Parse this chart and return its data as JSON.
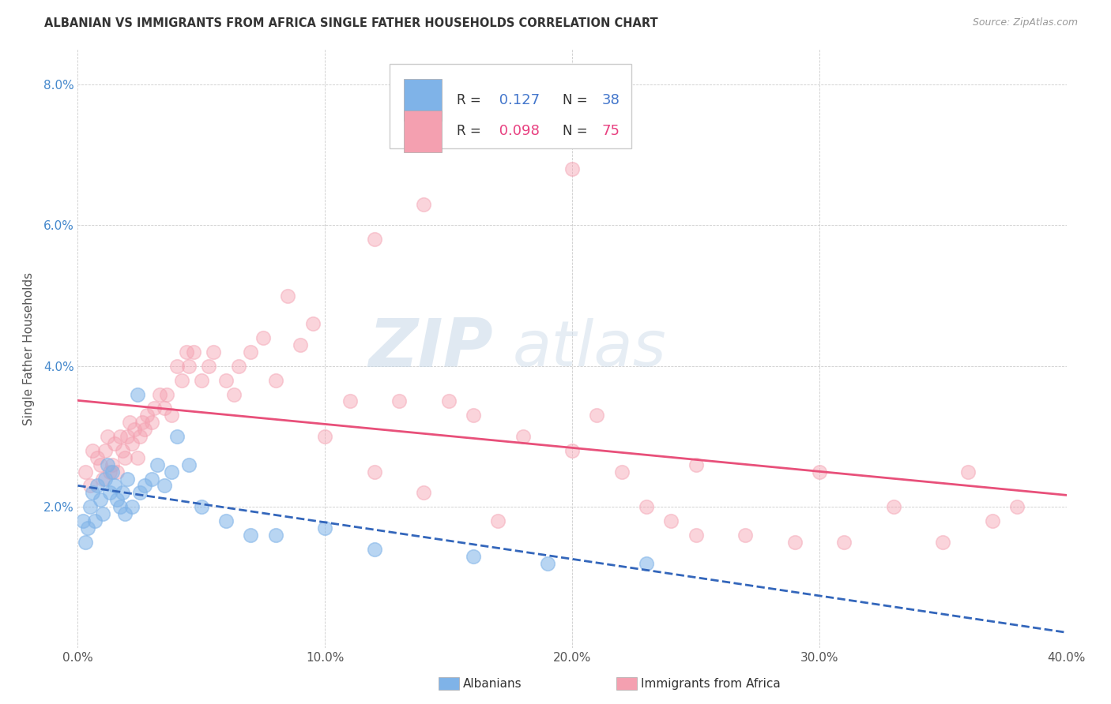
{
  "title": "ALBANIAN VS IMMIGRANTS FROM AFRICA SINGLE FATHER HOUSEHOLDS CORRELATION CHART",
  "source": "Source: ZipAtlas.com",
  "ylabel": "Single Father Households",
  "xlim": [
    0.0,
    0.4
  ],
  "ylim": [
    0.0,
    0.085
  ],
  "xticks": [
    0.0,
    0.1,
    0.2,
    0.3,
    0.4
  ],
  "yticks": [
    0.0,
    0.02,
    0.04,
    0.06,
    0.08
  ],
  "ytick_labels": [
    "",
    "2.0%",
    "4.0%",
    "6.0%",
    "8.0%"
  ],
  "xtick_labels": [
    "0.0%",
    "10.0%",
    "20.0%",
    "30.0%",
    "40.0%"
  ],
  "albanian_color": "#7fb3e8",
  "africa_color": "#f4a0b0",
  "trendline_albanian_color": "#3366bb",
  "trendline_africa_color": "#e8507a",
  "R_albanian": 0.127,
  "N_albanian": 38,
  "R_africa": 0.098,
  "N_africa": 75,
  "watermark_zip": "ZIP",
  "watermark_atlas": "atlas",
  "alb_x": [
    0.002,
    0.003,
    0.004,
    0.005,
    0.006,
    0.007,
    0.008,
    0.009,
    0.01,
    0.011,
    0.012,
    0.013,
    0.014,
    0.015,
    0.016,
    0.017,
    0.018,
    0.019,
    0.02,
    0.022,
    0.024,
    0.025,
    0.027,
    0.03,
    0.032,
    0.035,
    0.038,
    0.04,
    0.045,
    0.05,
    0.06,
    0.07,
    0.08,
    0.1,
    0.12,
    0.16,
    0.19,
    0.23
  ],
  "alb_y": [
    0.018,
    0.015,
    0.017,
    0.02,
    0.022,
    0.018,
    0.023,
    0.021,
    0.019,
    0.024,
    0.026,
    0.022,
    0.025,
    0.023,
    0.021,
    0.02,
    0.022,
    0.019,
    0.024,
    0.02,
    0.036,
    0.022,
    0.023,
    0.024,
    0.026,
    0.023,
    0.025,
    0.03,
    0.026,
    0.02,
    0.018,
    0.016,
    0.016,
    0.017,
    0.014,
    0.013,
    0.012,
    0.012
  ],
  "afr_x": [
    0.003,
    0.005,
    0.006,
    0.008,
    0.009,
    0.01,
    0.011,
    0.012,
    0.013,
    0.014,
    0.015,
    0.016,
    0.017,
    0.018,
    0.019,
    0.02,
    0.021,
    0.022,
    0.023,
    0.024,
    0.025,
    0.026,
    0.027,
    0.028,
    0.03,
    0.031,
    0.033,
    0.035,
    0.036,
    0.038,
    0.04,
    0.042,
    0.044,
    0.045,
    0.047,
    0.05,
    0.053,
    0.055,
    0.06,
    0.063,
    0.065,
    0.07,
    0.075,
    0.08,
    0.085,
    0.09,
    0.095,
    0.1,
    0.11,
    0.12,
    0.13,
    0.14,
    0.15,
    0.16,
    0.17,
    0.18,
    0.2,
    0.21,
    0.22,
    0.23,
    0.24,
    0.25,
    0.27,
    0.29,
    0.31,
    0.33,
    0.35,
    0.36,
    0.37,
    0.38,
    0.12,
    0.14,
    0.2,
    0.25,
    0.3
  ],
  "afr_y": [
    0.025,
    0.023,
    0.028,
    0.027,
    0.026,
    0.024,
    0.028,
    0.03,
    0.025,
    0.026,
    0.029,
    0.025,
    0.03,
    0.028,
    0.027,
    0.03,
    0.032,
    0.029,
    0.031,
    0.027,
    0.03,
    0.032,
    0.031,
    0.033,
    0.032,
    0.034,
    0.036,
    0.034,
    0.036,
    0.033,
    0.04,
    0.038,
    0.042,
    0.04,
    0.042,
    0.038,
    0.04,
    0.042,
    0.038,
    0.036,
    0.04,
    0.042,
    0.044,
    0.038,
    0.05,
    0.043,
    0.046,
    0.03,
    0.035,
    0.025,
    0.035,
    0.022,
    0.035,
    0.033,
    0.018,
    0.03,
    0.068,
    0.033,
    0.025,
    0.02,
    0.018,
    0.016,
    0.016,
    0.015,
    0.015,
    0.02,
    0.015,
    0.025,
    0.018,
    0.02,
    0.058,
    0.063,
    0.028,
    0.026,
    0.025
  ]
}
